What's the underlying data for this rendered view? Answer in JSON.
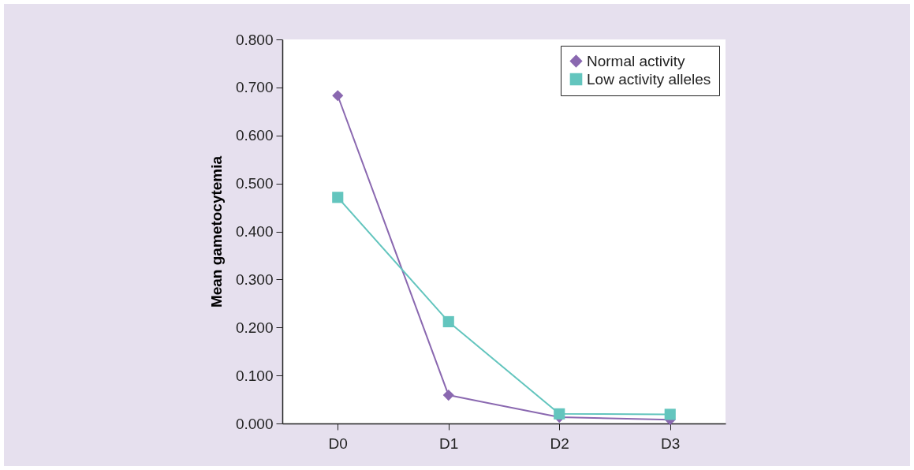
{
  "chart_data": {
    "type": "line",
    "ylabel": "Mean gametocytemia",
    "categories": [
      "D0",
      "D1",
      "D2",
      "D3"
    ],
    "series": [
      {
        "name": "Normal activity",
        "color": "#8a68b0",
        "marker": "diamond",
        "values": [
          0.683,
          0.059,
          0.013,
          0.008
        ]
      },
      {
        "name": "Low activity alleles",
        "color": "#63c5be",
        "marker": "square",
        "values": [
          0.471,
          0.212,
          0.02,
          0.019
        ]
      }
    ],
    "ylim": [
      0,
      0.8
    ],
    "yticks": [
      {
        "value": 0,
        "label": "0.000"
      },
      {
        "value": 0.1,
        "label": "0.100"
      },
      {
        "value": 0.2,
        "label": "0.200"
      },
      {
        "value": 0.3,
        "label": "0.300"
      },
      {
        "value": 0.4,
        "label": "0.400"
      },
      {
        "value": 0.5,
        "label": "0.500"
      },
      {
        "value": 0.6,
        "label": "0.600"
      },
      {
        "value": 0.7,
        "label": "0.700"
      },
      {
        "value": 0.8,
        "label": "0.800"
      }
    ],
    "grid": false,
    "legend": "top right",
    "line_style": "solid"
  }
}
